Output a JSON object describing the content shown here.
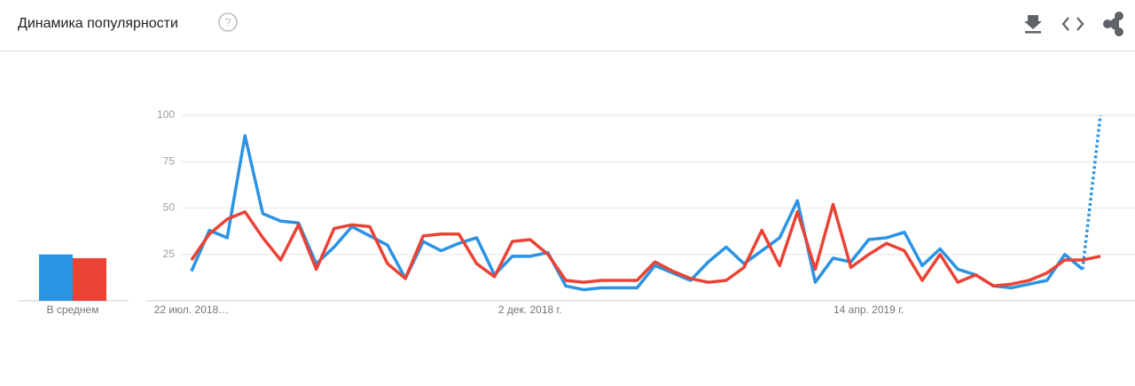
{
  "header": {
    "title": "Динамика популярности"
  },
  "chart_data": {
    "type": "line",
    "categories": [
      "22 июл. 2018…",
      null,
      null,
      null,
      null,
      null,
      null,
      null,
      null,
      null,
      null,
      null,
      null,
      null,
      null,
      null,
      null,
      null,
      null,
      "2 дек. 2018 г.",
      null,
      null,
      null,
      null,
      null,
      null,
      null,
      null,
      null,
      null,
      null,
      null,
      null,
      null,
      null,
      null,
      null,
      null,
      "14 апр. 2019 г.",
      null,
      null,
      null,
      null,
      null,
      null,
      null,
      null,
      null,
      null,
      null,
      null,
      null
    ],
    "series": [
      {
        "color": "#2b93e4",
        "average": 25,
        "last_point_partial": true,
        "values": [
          16,
          38,
          34,
          89,
          47,
          43,
          42,
          20,
          29,
          40,
          35,
          30,
          12,
          32,
          27,
          31,
          34,
          14,
          24,
          24,
          26,
          8,
          6,
          7,
          7,
          7,
          19,
          15,
          11,
          21,
          29,
          20,
          27,
          34,
          54,
          10,
          23,
          21,
          33,
          34,
          37,
          19,
          28,
          17,
          14,
          8,
          7,
          9,
          11,
          25,
          17,
          100
        ]
      },
      {
        "color": "#ea4335",
        "average": 23,
        "values": [
          22,
          36,
          44,
          48,
          34,
          22,
          41,
          17,
          39,
          41,
          40,
          20,
          12,
          35,
          36,
          36,
          20,
          13,
          32,
          33,
          25,
          11,
          10,
          11,
          11,
          11,
          21,
          16,
          12,
          10,
          11,
          18,
          38,
          19,
          48,
          17,
          52,
          18,
          25,
          31,
          27,
          11,
          25,
          10,
          14,
          8,
          9,
          11,
          15,
          22,
          22,
          24
        ]
      }
    ],
    "average_label": "В среднем",
    "ylim": [
      0,
      100
    ],
    "yticks": [
      25,
      50,
      75,
      100
    ],
    "grid": true
  }
}
